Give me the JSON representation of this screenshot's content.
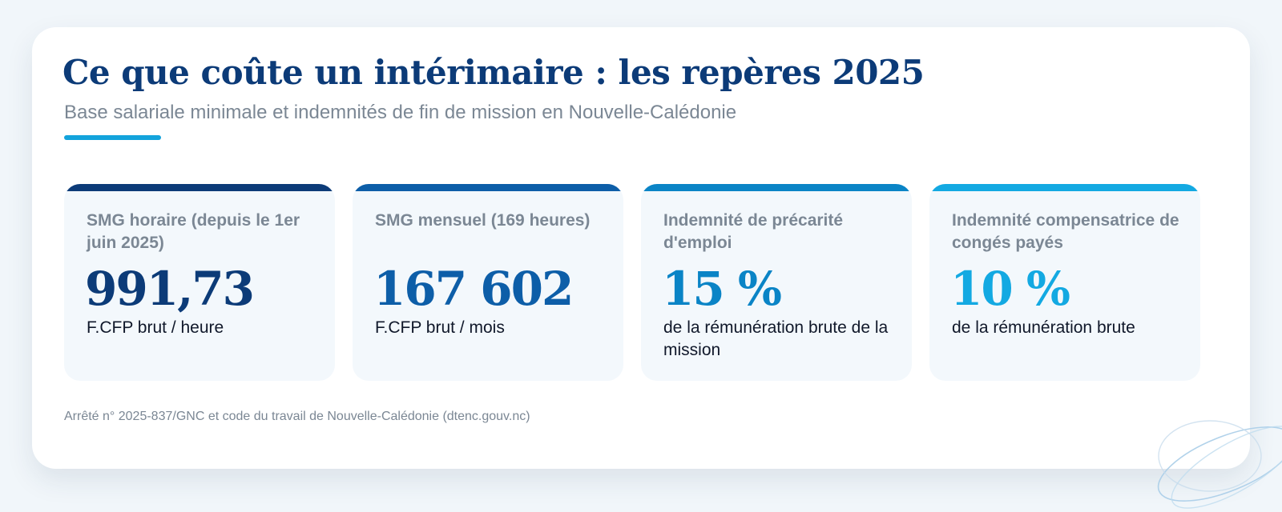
{
  "title": "Ce que coûte un intérimaire : les repères 2025",
  "subtitle": "Base salariale minimale et indemnités de fin de mission en Nouvelle-Calédonie",
  "tiles": [
    {
      "label": "SMG horaire (depuis le 1er juin 2025)",
      "value": "991,73",
      "unit": "F.CFP brut / heure",
      "accent": "#0c3b78",
      "value_color": "#0c3b78"
    },
    {
      "label": "SMG mensuel (169 heures)",
      "value": "167 602",
      "unit": "F.CFP brut / mois",
      "accent": "#0d5ea8",
      "value_color": "#0d5ea8"
    },
    {
      "label": "Indemnité de précarité d'emploi",
      "value": "15 %",
      "unit": "de la rémunération brute de la mission",
      "accent": "#0a84c6",
      "value_color": "#0a84c6"
    },
    {
      "label": "Indemnité compensatrice de congés payés",
      "value": "10 %",
      "unit": "de la rémunération brute",
      "accent": "#13a9e2",
      "value_color": "#13a9e2"
    }
  ],
  "source": "Arrêté n° 2025-837/GNC et code du travail de Nouvelle-Calédonie (dtenc.gouv.nc)",
  "colors": {
    "background": "#f1f6fa",
    "card": "#ffffff",
    "title": "#0c3b78",
    "muted_text": "#7b8794",
    "accent_rule": "#13a3dc"
  },
  "decoration": "ellipse-rings-icon"
}
